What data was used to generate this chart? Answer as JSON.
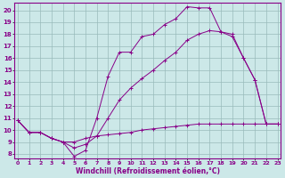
{
  "xlabel": "Windchill (Refroidissement éolien,°C)",
  "bg_color": "#cce8e8",
  "line_color": "#880088",
  "grid_color": "#99bbbb",
  "x_ticks": [
    0,
    1,
    2,
    3,
    4,
    5,
    6,
    7,
    8,
    9,
    10,
    11,
    12,
    13,
    14,
    15,
    16,
    17,
    18,
    19,
    20,
    21,
    22,
    23
  ],
  "y_ticks": [
    8,
    9,
    10,
    11,
    12,
    13,
    14,
    15,
    16,
    17,
    18,
    19,
    20
  ],
  "ylim": [
    7.6,
    20.6
  ],
  "xlim": [
    -0.3,
    23.3
  ],
  "line1_x": [
    0,
    1,
    2,
    3,
    4,
    5,
    6,
    7,
    8,
    9,
    10,
    11,
    12,
    13,
    14,
    15,
    16,
    17,
    18,
    19,
    20,
    21,
    22,
    23
  ],
  "line1_y": [
    10.8,
    9.8,
    9.8,
    9.3,
    9.0,
    9.0,
    9.3,
    9.5,
    9.6,
    9.7,
    9.8,
    10.0,
    10.1,
    10.2,
    10.3,
    10.4,
    10.5,
    10.5,
    10.5,
    10.5,
    10.5,
    10.5,
    10.5,
    10.5
  ],
  "line2_x": [
    0,
    1,
    2,
    3,
    4,
    5,
    6,
    7,
    8,
    9,
    10,
    11,
    12,
    13,
    14,
    15,
    16,
    17,
    18,
    19,
    20,
    21,
    22,
    23
  ],
  "line2_y": [
    10.8,
    9.8,
    9.8,
    9.3,
    9.0,
    8.5,
    8.8,
    9.5,
    11.0,
    12.5,
    13.5,
    14.3,
    15.0,
    15.8,
    16.5,
    17.5,
    18.0,
    18.3,
    18.2,
    17.8,
    16.0,
    14.2,
    10.5,
    10.5
  ],
  "line3_x": [
    0,
    1,
    2,
    3,
    4,
    5,
    6,
    7,
    8,
    9,
    10,
    11,
    12,
    13,
    14,
    15,
    16,
    17,
    18,
    19,
    20,
    21,
    22,
    23
  ],
  "line3_y": [
    10.8,
    9.8,
    9.8,
    9.3,
    9.0,
    7.8,
    8.3,
    11.0,
    14.5,
    16.5,
    16.5,
    17.8,
    18.0,
    18.8,
    19.3,
    20.3,
    20.2,
    20.2,
    18.2,
    18.0,
    16.0,
    14.2,
    10.5,
    10.5
  ]
}
